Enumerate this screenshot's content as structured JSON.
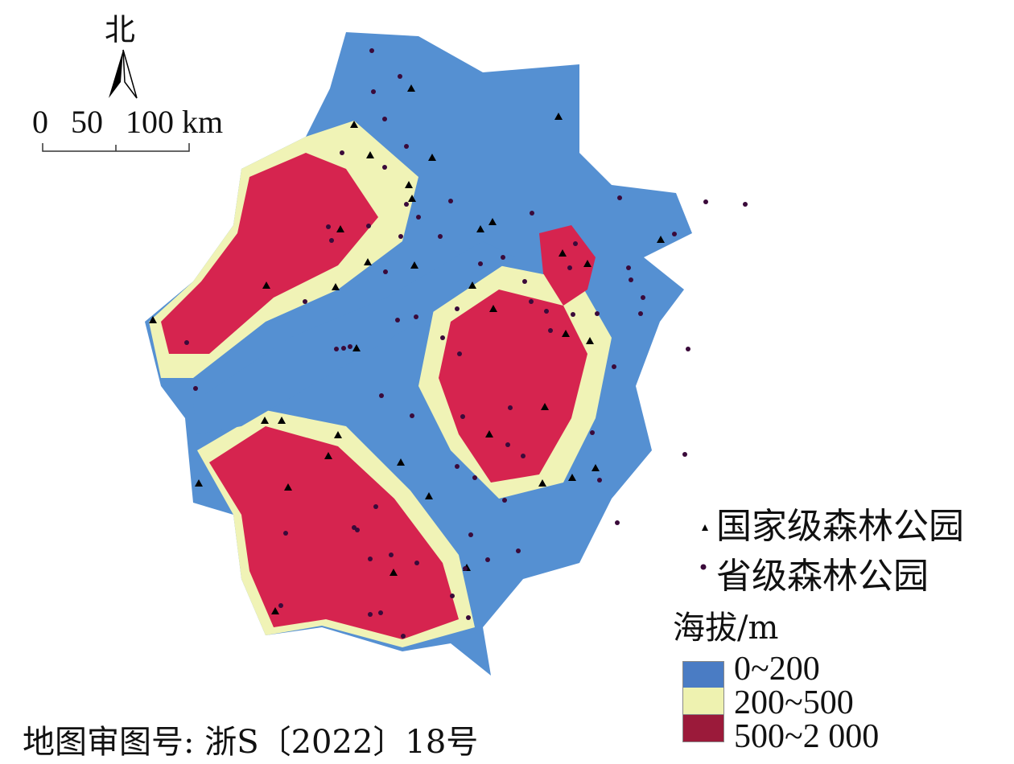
{
  "compass": {
    "label": "北",
    "icon": "north-arrow-icon"
  },
  "scale_bar": {
    "ticks": [
      "0",
      "50",
      "100"
    ],
    "unit": "km"
  },
  "legend": {
    "points": [
      {
        "label": "国家级森林公园",
        "symbol": "triangle",
        "color": "#000000"
      },
      {
        "label": "省级森林公园",
        "symbol": "dot",
        "color": "#3a0a3a"
      }
    ],
    "elevation_title": "海拔/m",
    "elevation_classes": [
      {
        "label": "0~200",
        "color": "#4a7cc4"
      },
      {
        "label": "200~500",
        "color": "#eef2b0"
      },
      {
        "label": "500~2 000",
        "color": "#b21f45"
      }
    ]
  },
  "map_colors": {
    "low": "#5590d2",
    "mid": "#f0f3b6",
    "high": "#d6244f"
  },
  "review_number": "地图审图号: 浙S〔2022〕18号"
}
